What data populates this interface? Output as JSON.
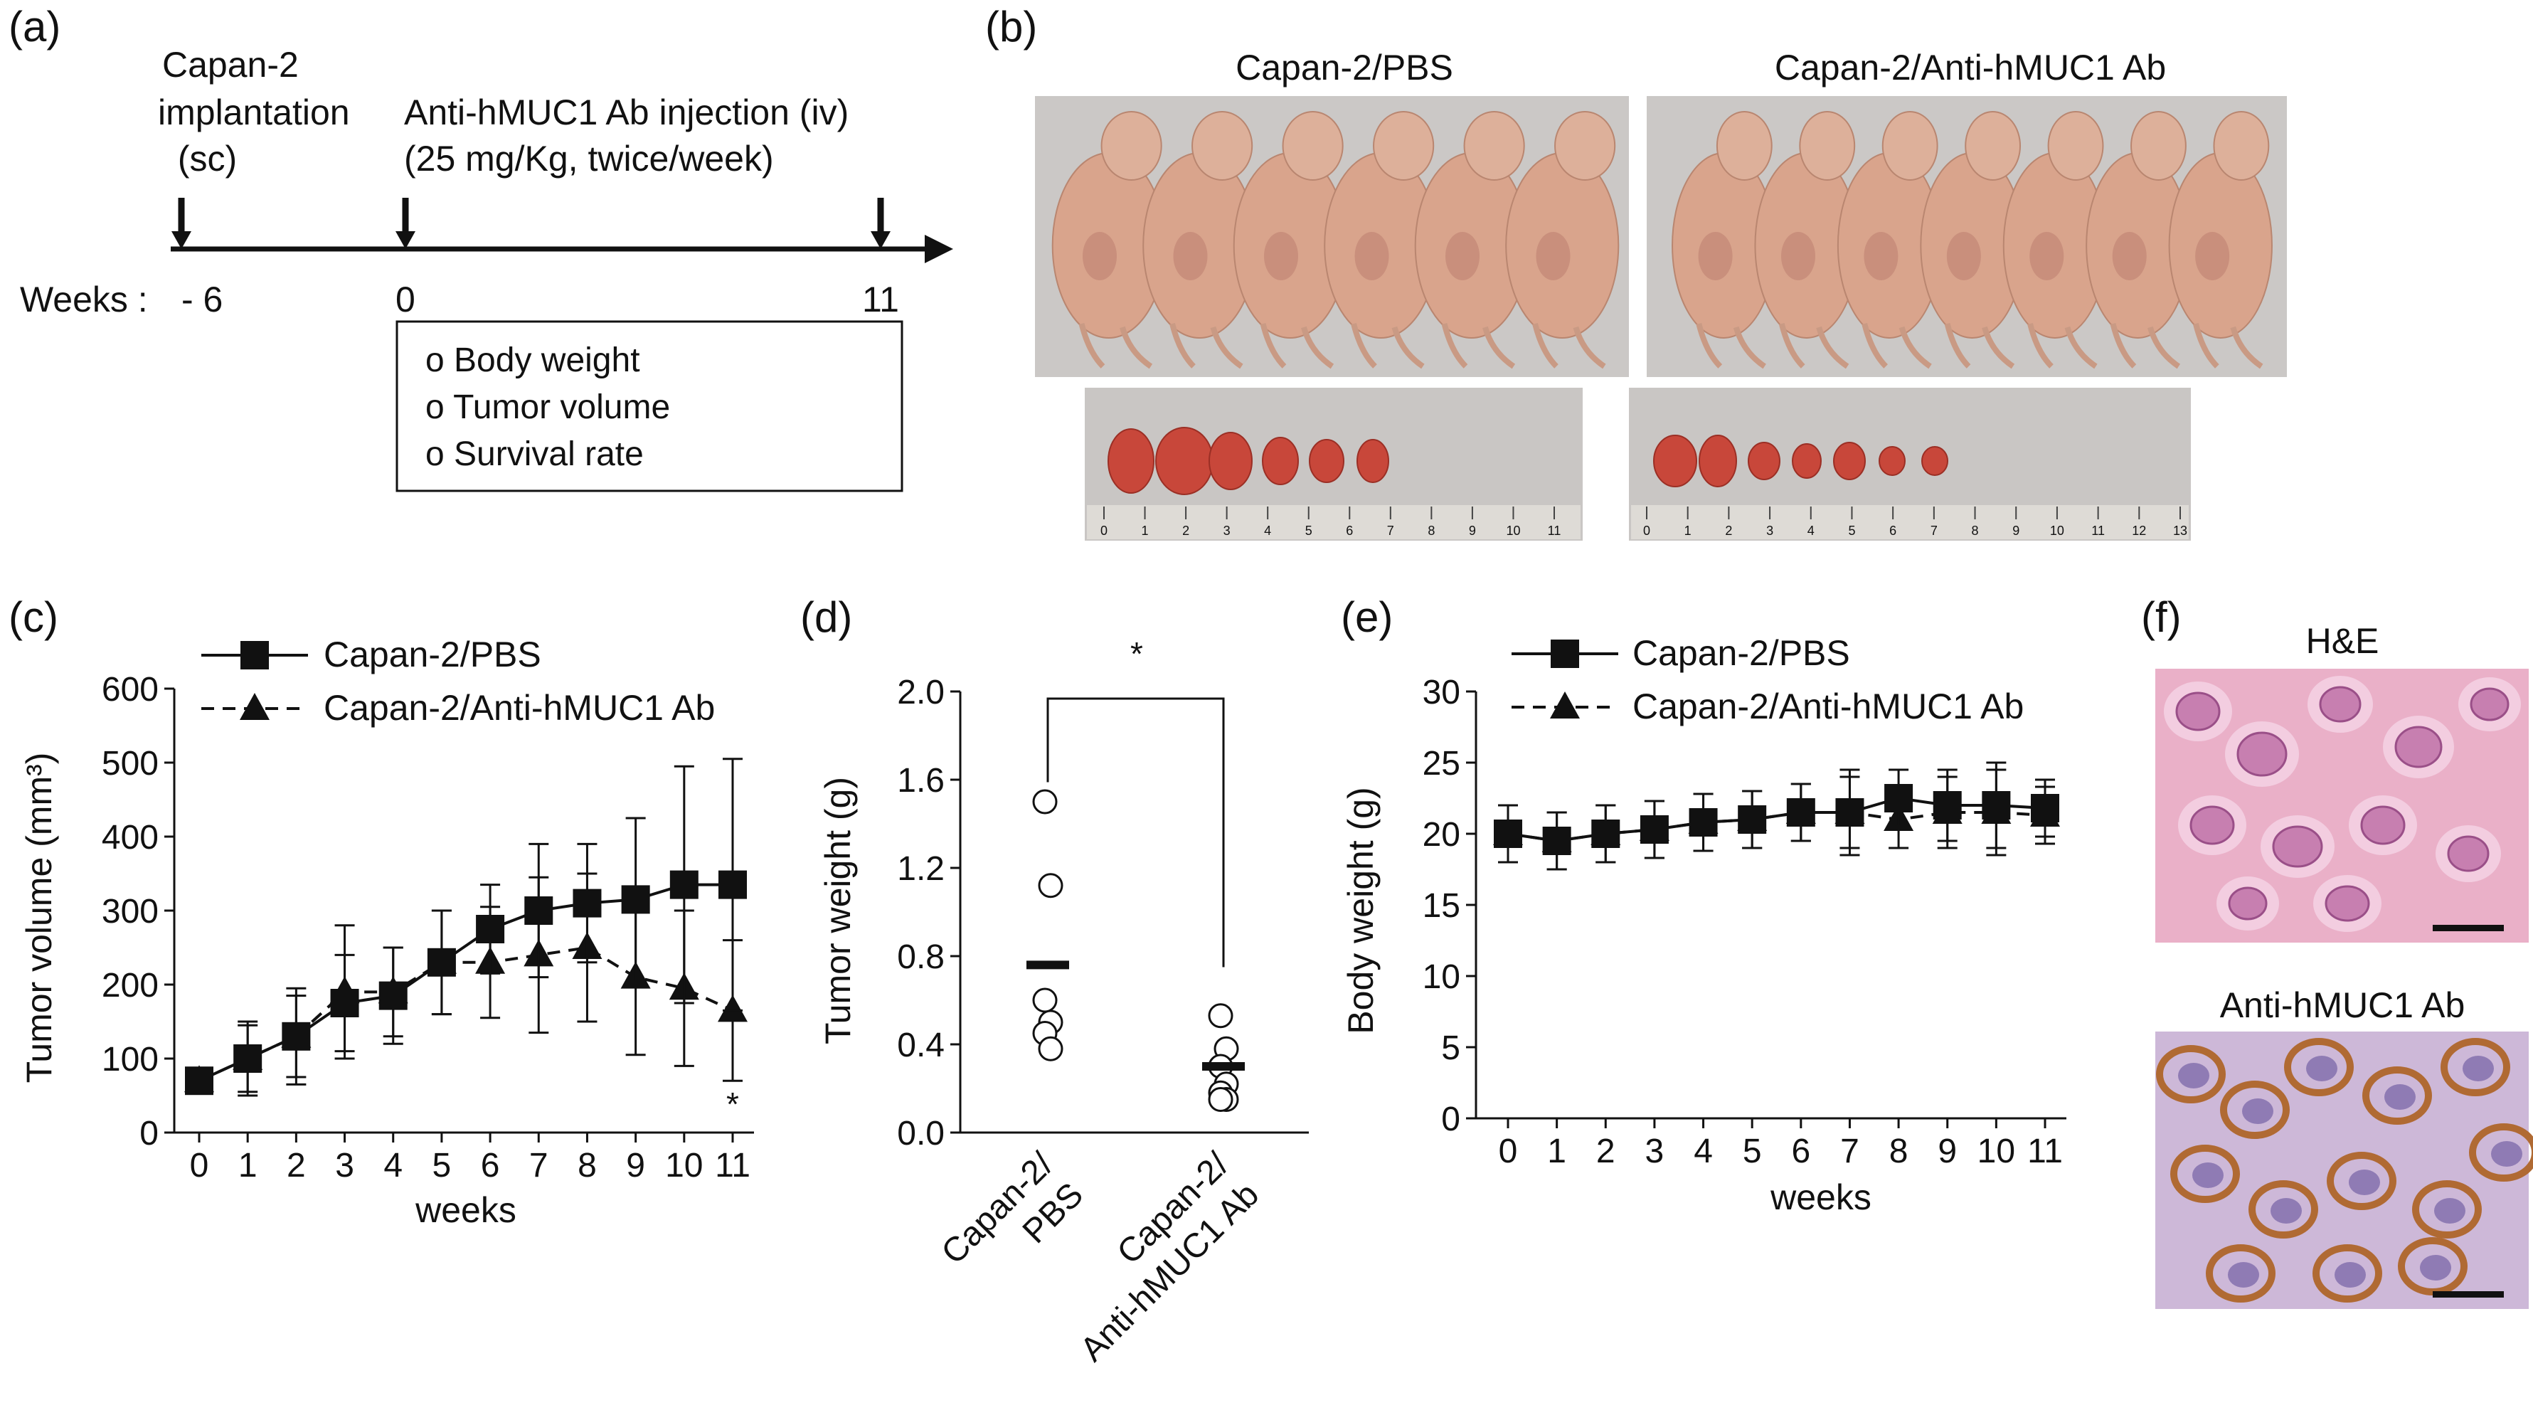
{
  "panel_letters": [
    "(a)",
    "(b)",
    "(c)",
    "(d)",
    "(e)",
    "(f)"
  ],
  "panel_a": {
    "events": [
      {
        "label_lines": [
          "Capan-2",
          "implantation",
          " (sc)"
        ]
      },
      {
        "label_lines": [
          "Anti-hMUC1 Ab injection (iv)",
          "(25 mg/Kg, twice/week)"
        ]
      }
    ],
    "week_prefix": "Weeks :",
    "week_marks": [
      "- 6",
      "0",
      "11"
    ],
    "measurements": [
      "o Body weight",
      "o Tumor volume",
      "o Survival rate"
    ]
  },
  "panel_b": {
    "group_labels": [
      "Capan-2/PBS",
      "Capan-2/Anti-hMUC1 Ab"
    ],
    "pbs_mice_count": 6,
    "ab_mice_count": 7,
    "ruler_left_numbers": [
      "0",
      "1",
      "2",
      "3",
      "4",
      "5",
      "6",
      "7",
      "8",
      "9",
      "10",
      "11"
    ],
    "ruler_right_numbers": [
      "0",
      "1",
      "2",
      "3",
      "4",
      "5",
      "6",
      "7",
      "8",
      "9",
      "10",
      "11",
      "12",
      "13"
    ],
    "tumor_color": "#c8473a",
    "mouse_color": "#d9a48c",
    "photo_bg": "#c9c6c4"
  },
  "chart_data": [
    {
      "panel": "c",
      "type": "line",
      "x": [
        0,
        1,
        2,
        3,
        4,
        5,
        6,
        7,
        8,
        9,
        10,
        11
      ],
      "xlabel": "weeks",
      "ylabel": "Tumor volume (mm³)",
      "ylim": [
        0,
        600
      ],
      "yticks": [
        0,
        100,
        200,
        300,
        400,
        500,
        600
      ],
      "legend_position": "top-left",
      "significance_marker": "*",
      "series": [
        {
          "name": "Capan-2/PBS",
          "marker": "square",
          "line": "solid",
          "values": [
            70,
            100,
            130,
            175,
            185,
            230,
            275,
            300,
            310,
            315,
            335,
            335
          ],
          "errors": [
            8,
            50,
            65,
            65,
            65,
            70,
            60,
            90,
            80,
            110,
            160,
            170
          ]
        },
        {
          "name": "Capan-2/Anti-hMUC1 Ab",
          "marker": "triangle",
          "line": "dashed",
          "values": [
            70,
            100,
            130,
            190,
            190,
            230,
            230,
            240,
            250,
            210,
            195,
            165
          ],
          "errors": [
            8,
            45,
            55,
            90,
            60,
            70,
            75,
            105,
            100,
            105,
            105,
            95
          ]
        }
      ]
    },
    {
      "panel": "d",
      "type": "scatter",
      "categories": [
        "Capan-2/\nPBS",
        "Capan-2/\nAnti-hMUC1 Ab"
      ],
      "category_lines": [
        [
          "Capan-2/",
          "PBS"
        ],
        [
          "Capan-2/",
          "Anti-hMUC1 Ab"
        ]
      ],
      "ylabel": "Tumor weight (g)",
      "ylim": [
        0,
        2.0
      ],
      "yticks": [
        "0.0",
        "0.4",
        "0.8",
        "1.2",
        "1.6",
        "2.0"
      ],
      "points": [
        [
          1.5,
          1.12,
          0.6,
          0.5,
          0.45,
          0.38
        ],
        [
          0.53,
          0.38,
          0.3,
          0.22,
          0.18,
          0.15,
          0.15
        ]
      ],
      "means": [
        0.76,
        0.3
      ],
      "significance": "*"
    },
    {
      "panel": "e",
      "type": "line",
      "x": [
        0,
        1,
        2,
        3,
        4,
        5,
        6,
        7,
        8,
        9,
        10,
        11
      ],
      "xlabel": "weeks",
      "ylabel": "Body weight (g)",
      "ylim": [
        0,
        30
      ],
      "yticks": [
        0,
        5,
        10,
        15,
        20,
        25,
        30
      ],
      "legend_position": "top-left",
      "series": [
        {
          "name": "Capan-2/PBS",
          "marker": "square",
          "line": "solid",
          "values": [
            20,
            19.5,
            20,
            20.3,
            20.8,
            21,
            21.5,
            21.5,
            22.5,
            22,
            22,
            21.8
          ],
          "errors": [
            2,
            2,
            2,
            2,
            2,
            2,
            2,
            2.5,
            2,
            2.5,
            3,
            2
          ]
        },
        {
          "name": "Capan-2/Anti-hMUC1 Ab",
          "marker": "triangle",
          "line": "dashed",
          "values": [
            20,
            19.5,
            20,
            20.3,
            20.8,
            21,
            21.5,
            21.5,
            21,
            21.5,
            21.5,
            21.3
          ],
          "errors": [
            2,
            2,
            2,
            2,
            2,
            2,
            2,
            3,
            2,
            2.5,
            3,
            2
          ]
        }
      ]
    }
  ],
  "panel_f": {
    "titles": [
      "H&E",
      "Anti-hMUC1 Ab"
    ],
    "he_bg": "#e9a9c4",
    "ihc_bg": "#c9b3d6",
    "ihc_brown": "#b06a33"
  }
}
